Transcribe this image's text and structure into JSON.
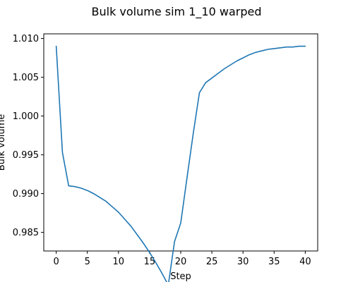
{
  "chart_data": {
    "type": "line",
    "title": "Bulk volume sim 1_10 warped",
    "xlabel": "Step",
    "ylabel": "Bulk volume",
    "xlim": [
      -2,
      42
    ],
    "ylim": [
      0.9826,
      1.0106
    ],
    "x_ticks": [
      0,
      5,
      10,
      15,
      20,
      25,
      30,
      35,
      40
    ],
    "x_tick_labels": [
      "0",
      "5",
      "10",
      "15",
      "20",
      "25",
      "30",
      "35",
      "40"
    ],
    "y_ticks": [
      0.985,
      0.99,
      0.995,
      1.0,
      1.005,
      1.01
    ],
    "y_tick_labels": [
      "0.985",
      "0.990",
      "0.995",
      "1.000",
      "1.005",
      "1.010"
    ],
    "grid": false,
    "series": [
      {
        "color": "#1f77b4",
        "x": [
          0,
          1,
          2,
          3,
          4,
          5,
          6,
          7,
          8,
          9,
          10,
          11,
          12,
          13,
          14,
          15,
          16,
          17,
          18,
          19,
          20,
          21,
          22,
          23,
          24,
          25,
          26,
          27,
          28,
          29,
          30,
          31,
          32,
          33,
          34,
          35,
          36,
          37,
          38,
          39,
          40
        ],
        "y": [
          1.009,
          0.9953,
          0.991,
          0.9909,
          0.9907,
          0.9904,
          0.99,
          0.9895,
          0.989,
          0.9883,
          0.9876,
          0.9867,
          0.9858,
          0.9847,
          0.9836,
          0.9824,
          0.9811,
          0.9797,
          0.9782,
          0.9838,
          0.9862,
          0.992,
          0.9977,
          1.003,
          1.0043,
          1.0049,
          1.0055,
          1.0061,
          1.0066,
          1.0071,
          1.0075,
          1.0079,
          1.0082,
          1.0084,
          1.0086,
          1.0087,
          1.0088,
          1.0089,
          1.0089,
          1.009,
          1.009
        ]
      }
    ]
  }
}
